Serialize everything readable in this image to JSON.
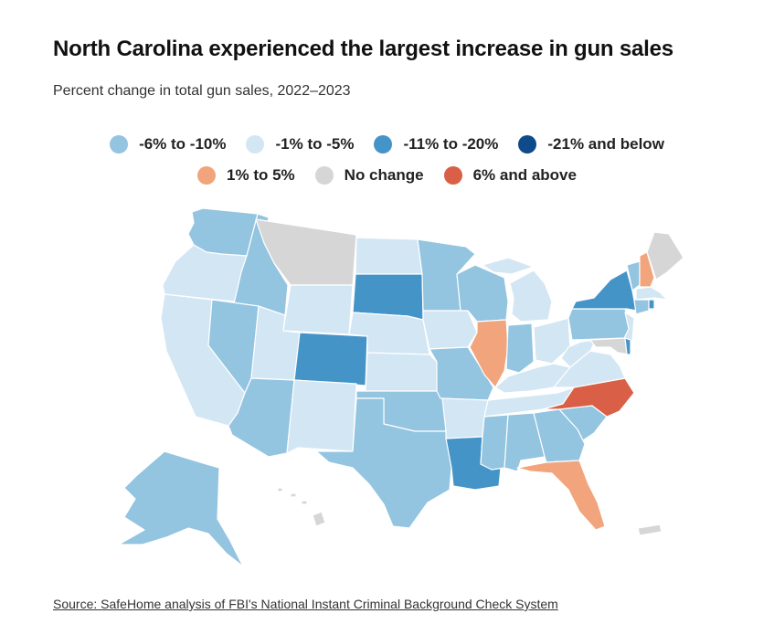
{
  "title": "North Carolina experienced the largest increase in gun sales",
  "subtitle": "Percent change in total gun sales, 2022–2023",
  "legend": [
    {
      "key": "m6_10",
      "label": "-6% to -10%",
      "color": "#93c4e0"
    },
    {
      "key": "m1_5",
      "label": "-1% to -5%",
      "color": "#d3e6f4"
    },
    {
      "key": "m11_20",
      "label": "-11% to -20%",
      "color": "#4594c8"
    },
    {
      "key": "m21",
      "label": "-21% and below",
      "color": "#0f4b8a"
    },
    {
      "key": "p1_5",
      "label": "1% to 5%",
      "color": "#f2a47d"
    },
    {
      "key": "none",
      "label": "No change",
      "color": "#d6d6d6"
    },
    {
      "key": "p6",
      "label": "6% and above",
      "color": "#d95f47"
    }
  ],
  "states": {
    "WA": "m6_10",
    "OR": "m1_5",
    "CA": "m1_5",
    "ID": "m6_10",
    "NV": "m6_10",
    "MT": "none",
    "WY": "m1_5",
    "UT": "m1_5",
    "AZ": "m6_10",
    "CO": "m11_20",
    "NM": "m1_5",
    "ND": "m1_5",
    "SD": "m11_20",
    "NE": "m1_5",
    "KS": "m1_5",
    "OK": "m6_10",
    "TX": "m6_10",
    "MN": "m6_10",
    "IA": "m1_5",
    "MO": "m6_10",
    "AR": "m1_5",
    "LA": "m11_20",
    "WI": "m6_10",
    "IL": "p1_5",
    "MI": "m1_5",
    "IN": "m6_10",
    "OH": "m1_5",
    "KY": "m1_5",
    "TN": "m1_5",
    "MS": "m6_10",
    "AL": "m6_10",
    "GA": "m6_10",
    "FL": "p1_5",
    "SC": "m6_10",
    "NC": "p6",
    "VA": "m1_5",
    "WV": "m1_5",
    "PA": "m6_10",
    "NY": "m11_20",
    "ME": "none",
    "NH": "p1_5",
    "VT": "m6_10",
    "MA": "m1_5",
    "RI": "m11_20",
    "CT": "m6_10",
    "NJ": "m1_5",
    "DE": "m11_20",
    "MD": "none",
    "AK": "m6_10",
    "HI": "none",
    "PR": "none"
  },
  "source": "Source: SafeHome analysis of FBI's National Instant Criminal Background Check System"
}
